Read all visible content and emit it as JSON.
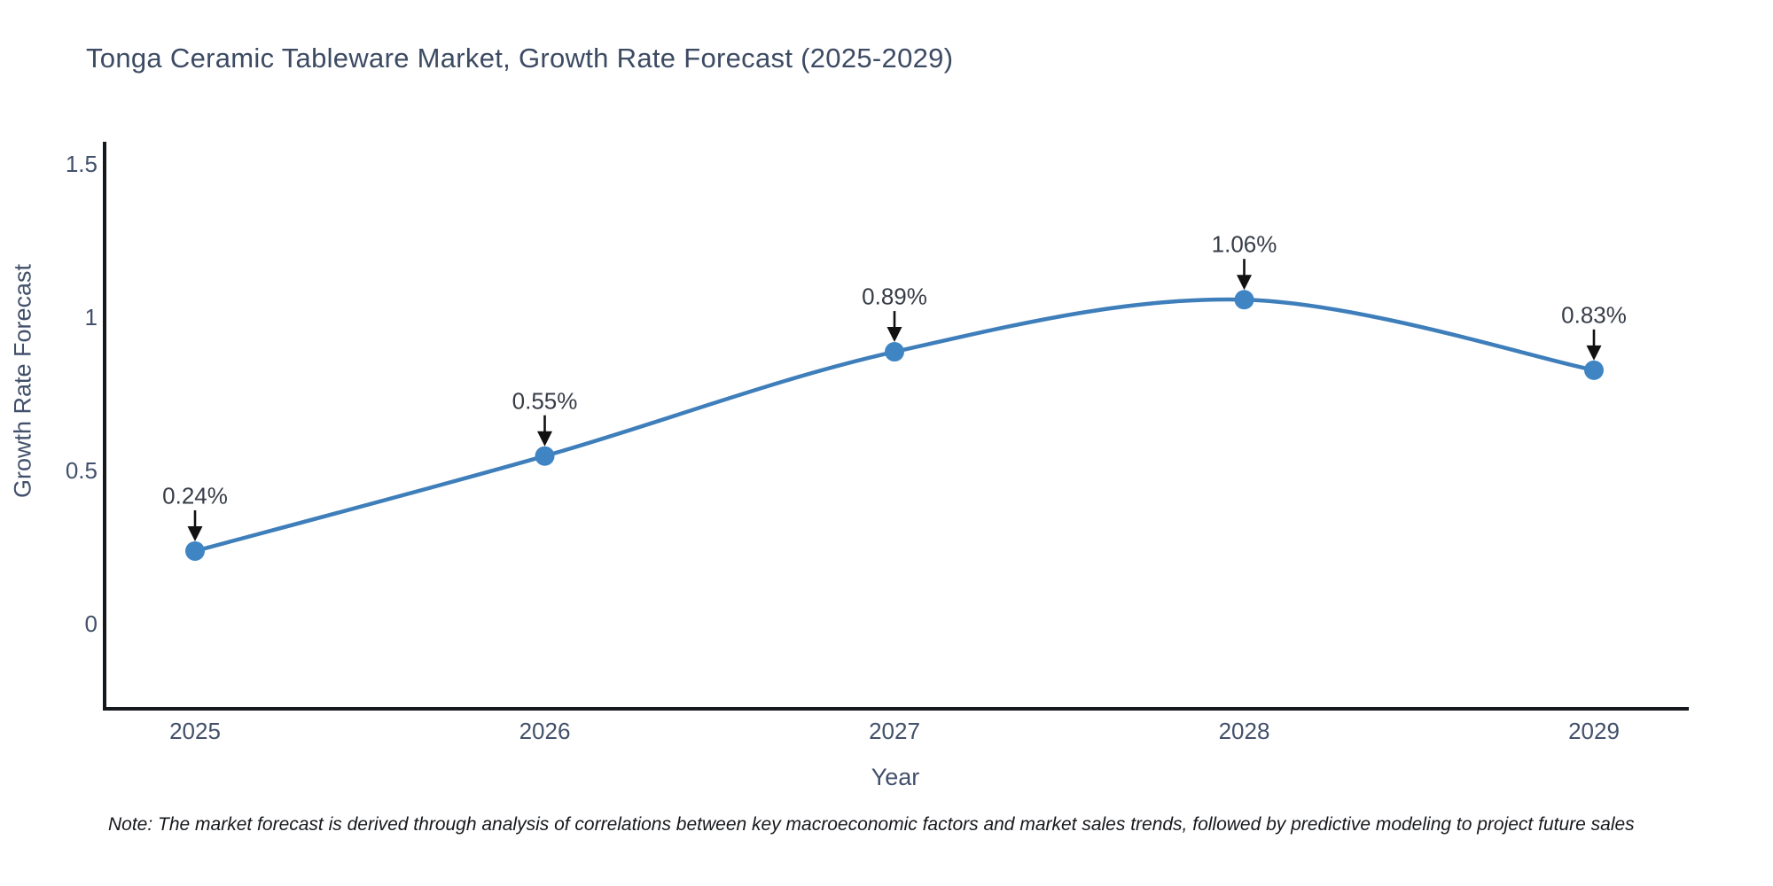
{
  "title": "Tonga Ceramic Tableware Market, Growth Rate Forecast (2025-2029)",
  "note": "Note: The market forecast is derived through analysis of correlations between key macroeconomic factors and market sales trends, followed by predictive modeling to project future sales",
  "chart_data": {
    "type": "line",
    "title": "Tonga Ceramic Tableware Market, Growth Rate Forecast (2025-2029)",
    "x": [
      2025,
      2026,
      2027,
      2028,
      2029
    ],
    "series": [
      {
        "name": "Growth Rate Forecast",
        "values": [
          0.24,
          0.55,
          0.89,
          1.06,
          0.83
        ]
      }
    ],
    "annotations": [
      "0.24%",
      "0.55%",
      "0.89%",
      "1.06%",
      "0.83%"
    ],
    "xlabel": "Year",
    "ylabel": "Growth Rate Forecast",
    "yticks": [
      0,
      0.5,
      1,
      1.5
    ],
    "ylim": [
      -0.28,
      1.58
    ],
    "xlim": [
      2024.74,
      2029.27
    ],
    "grid": false,
    "legend_position": "none",
    "line_shape": "spline",
    "marker": "circle",
    "colors": {
      "line": "#3e7eba",
      "marker": "#3f85c4",
      "axis": "#15181c",
      "text": "#42506b",
      "annotation_text": "#363c47",
      "arrow": "#111111"
    }
  }
}
